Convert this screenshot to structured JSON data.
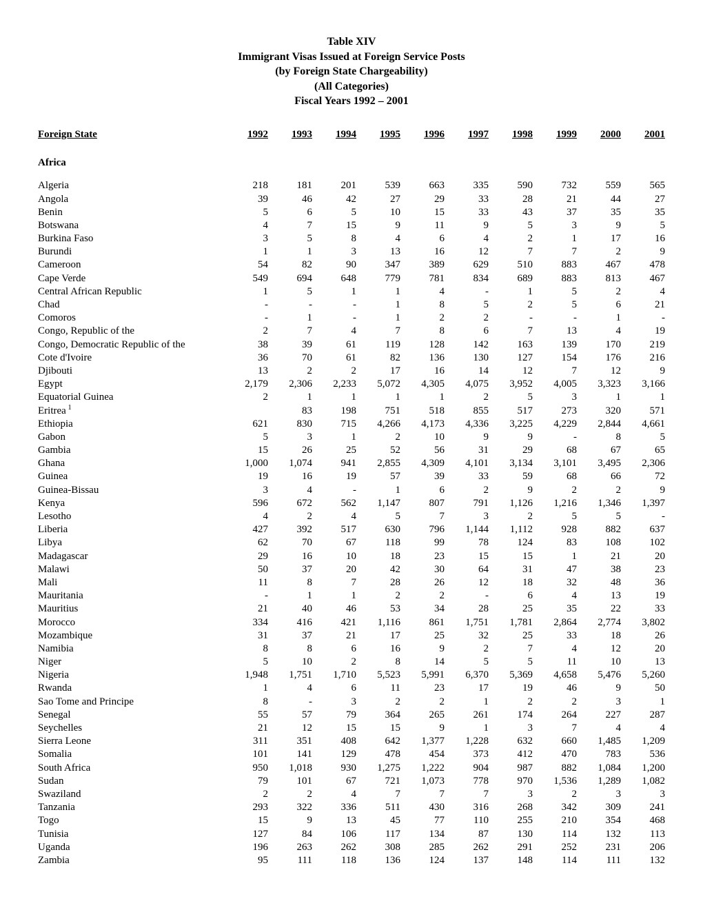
{
  "title_lines": [
    "Table XIV",
    "Immigrant Visas Issued at Foreign Service Posts",
    "(by Foreign State Chargeability)",
    "(All Categories)",
    "Fiscal Years 1992 – 2001"
  ],
  "header": {
    "state_label": "Foreign State",
    "years": [
      "1992",
      "1993",
      "1994",
      "1995",
      "1996",
      "1997",
      "1998",
      "1999",
      "2000",
      "2001"
    ]
  },
  "region": "Africa",
  "rows": [
    {
      "state": "Algeria",
      "v": [
        "218",
        "181",
        "201",
        "539",
        "663",
        "335",
        "590",
        "732",
        "559",
        "565"
      ]
    },
    {
      "state": "Angola",
      "v": [
        "39",
        "46",
        "42",
        "27",
        "29",
        "33",
        "28",
        "21",
        "44",
        "27"
      ]
    },
    {
      "state": "Benin",
      "v": [
        "5",
        "6",
        "5",
        "10",
        "15",
        "33",
        "43",
        "37",
        "35",
        "35"
      ]
    },
    {
      "state": "Botswana",
      "v": [
        "4",
        "7",
        "15",
        "9",
        "11",
        "9",
        "5",
        "3",
        "9",
        "5"
      ]
    },
    {
      "state": "Burkina Faso",
      "v": [
        "3",
        "5",
        "8",
        "4",
        "6",
        "4",
        "2",
        "1",
        "17",
        "16"
      ]
    },
    {
      "state": "Burundi",
      "v": [
        "1",
        "1",
        "3",
        "13",
        "16",
        "12",
        "7",
        "7",
        "2",
        "9"
      ]
    },
    {
      "state": "Cameroon",
      "v": [
        "54",
        "82",
        "90",
        "347",
        "389",
        "629",
        "510",
        "883",
        "467",
        "478"
      ]
    },
    {
      "state": "Cape Verde",
      "v": [
        "549",
        "694",
        "648",
        "779",
        "781",
        "834",
        "689",
        "883",
        "813",
        "467"
      ]
    },
    {
      "state": "Central African Republic",
      "v": [
        "1",
        "5",
        "1",
        "1",
        "4",
        "-",
        "1",
        "5",
        "2",
        "4"
      ]
    },
    {
      "state": "Chad",
      "v": [
        "-",
        "-",
        "-",
        "1",
        "8",
        "5",
        "2",
        "5",
        "6",
        "21"
      ]
    },
    {
      "state": "Comoros",
      "v": [
        "-",
        "1",
        "-",
        "1",
        "2",
        "2",
        "-",
        "-",
        "1",
        "-"
      ]
    },
    {
      "state": "Congo, Republic of the",
      "v": [
        "2",
        "7",
        "4",
        "7",
        "8",
        "6",
        "7",
        "13",
        "4",
        "19"
      ]
    },
    {
      "state": "Congo, Democratic Republic of the",
      "v": [
        "38",
        "39",
        "61",
        "119",
        "128",
        "142",
        "163",
        "139",
        "170",
        "219"
      ]
    },
    {
      "state": "Cote d'Ivoire",
      "v": [
        "36",
        "70",
        "61",
        "82",
        "136",
        "130",
        "127",
        "154",
        "176",
        "216"
      ]
    },
    {
      "state": "Djibouti",
      "v": [
        "13",
        "2",
        "2",
        "17",
        "16",
        "14",
        "12",
        "7",
        "12",
        "9"
      ]
    },
    {
      "state": "Egypt",
      "v": [
        "2,179",
        "2,306",
        "2,233",
        "5,072",
        "4,305",
        "4,075",
        "3,952",
        "4,005",
        "3,323",
        "3,166"
      ]
    },
    {
      "state": "Equatorial Guinea",
      "v": [
        "2",
        "1",
        "1",
        "1",
        "1",
        "2",
        "5",
        "3",
        "1",
        "1"
      ]
    },
    {
      "state": "Eritrea",
      "sup": "1",
      "v": [
        "",
        "83",
        "198",
        "751",
        "518",
        "855",
        "517",
        "273",
        "320",
        "571"
      ]
    },
    {
      "state": "Ethiopia",
      "v": [
        "621",
        "830",
        "715",
        "4,266",
        "4,173",
        "4,336",
        "3,225",
        "4,229",
        "2,844",
        "4,661"
      ]
    },
    {
      "state": "Gabon",
      "v": [
        "5",
        "3",
        "1",
        "2",
        "10",
        "9",
        "9",
        "-",
        "8",
        "5"
      ]
    },
    {
      "state": "Gambia",
      "v": [
        "15",
        "26",
        "25",
        "52",
        "56",
        "31",
        "29",
        "68",
        "67",
        "65"
      ]
    },
    {
      "state": "Ghana",
      "v": [
        "1,000",
        "1,074",
        "941",
        "2,855",
        "4,309",
        "4,101",
        "3,134",
        "3,101",
        "3,495",
        "2,306"
      ]
    },
    {
      "state": "Guinea",
      "v": [
        "19",
        "16",
        "19",
        "57",
        "39",
        "33",
        "59",
        "68",
        "66",
        "72"
      ]
    },
    {
      "state": "Guinea-Bissau",
      "v": [
        "3",
        "4",
        "-",
        "1",
        "6",
        "2",
        "9",
        "2",
        "2",
        "9"
      ]
    },
    {
      "state": "Kenya",
      "v": [
        "596",
        "672",
        "562",
        "1,147",
        "807",
        "791",
        "1,126",
        "1,216",
        "1,346",
        "1,397"
      ]
    },
    {
      "state": "Lesotho",
      "v": [
        "4",
        "2",
        "4",
        "5",
        "7",
        "3",
        "2",
        "5",
        "5",
        "-"
      ]
    },
    {
      "state": "Liberia",
      "v": [
        "427",
        "392",
        "517",
        "630",
        "796",
        "1,144",
        "1,112",
        "928",
        "882",
        "637"
      ]
    },
    {
      "state": "Libya",
      "v": [
        "62",
        "70",
        "67",
        "118",
        "99",
        "78",
        "124",
        "83",
        "108",
        "102"
      ]
    },
    {
      "state": "Madagascar",
      "v": [
        "29",
        "16",
        "10",
        "18",
        "23",
        "15",
        "15",
        "1",
        "21",
        "20"
      ]
    },
    {
      "state": "Malawi",
      "v": [
        "50",
        "37",
        "20",
        "42",
        "30",
        "64",
        "31",
        "47",
        "38",
        "23"
      ]
    },
    {
      "state": "Mali",
      "v": [
        "11",
        "8",
        "7",
        "28",
        "26",
        "12",
        "18",
        "32",
        "48",
        "36"
      ]
    },
    {
      "state": "Mauritania",
      "v": [
        "-",
        "1",
        "1",
        "2",
        "2",
        "-",
        "6",
        "4",
        "13",
        "19"
      ]
    },
    {
      "state": "Mauritius",
      "v": [
        "21",
        "40",
        "46",
        "53",
        "34",
        "28",
        "25",
        "35",
        "22",
        "33"
      ]
    },
    {
      "state": "Morocco",
      "v": [
        "334",
        "416",
        "421",
        "1,116",
        "861",
        "1,751",
        "1,781",
        "2,864",
        "2,774",
        "3,802"
      ]
    },
    {
      "state": "Mozambique",
      "v": [
        "31",
        "37",
        "21",
        "17",
        "25",
        "32",
        "25",
        "33",
        "18",
        "26"
      ]
    },
    {
      "state": "Namibia",
      "v": [
        "8",
        "8",
        "6",
        "16",
        "9",
        "2",
        "7",
        "4",
        "12",
        "20"
      ]
    },
    {
      "state": "Niger",
      "v": [
        "5",
        "10",
        "2",
        "8",
        "14",
        "5",
        "5",
        "11",
        "10",
        "13"
      ]
    },
    {
      "state": "Nigeria",
      "v": [
        "1,948",
        "1,751",
        "1,710",
        "5,523",
        "5,991",
        "6,370",
        "5,369",
        "4,658",
        "5,476",
        "5,260"
      ]
    },
    {
      "state": "Rwanda",
      "v": [
        "1",
        "4",
        "6",
        "11",
        "23",
        "17",
        "19",
        "46",
        "9",
        "50"
      ]
    },
    {
      "state": "Sao Tome and Principe",
      "v": [
        "8",
        "-",
        "3",
        "2",
        "2",
        "1",
        "2",
        "2",
        "3",
        "1"
      ]
    },
    {
      "state": "Senegal",
      "v": [
        "55",
        "57",
        "79",
        "364",
        "265",
        "261",
        "174",
        "264",
        "227",
        "287"
      ]
    },
    {
      "state": "Seychelles",
      "v": [
        "21",
        "12",
        "15",
        "15",
        "9",
        "1",
        "3",
        "7",
        "4",
        "4"
      ]
    },
    {
      "state": "Sierra Leone",
      "v": [
        "311",
        "351",
        "408",
        "642",
        "1,377",
        "1,228",
        "632",
        "660",
        "1,485",
        "1,209"
      ]
    },
    {
      "state": "Somalia",
      "v": [
        "101",
        "141",
        "129",
        "478",
        "454",
        "373",
        "412",
        "470",
        "783",
        "536"
      ]
    },
    {
      "state": "South Africa",
      "v": [
        "950",
        "1,018",
        "930",
        "1,275",
        "1,222",
        "904",
        "987",
        "882",
        "1,084",
        "1,200"
      ]
    },
    {
      "state": "Sudan",
      "v": [
        "79",
        "101",
        "67",
        "721",
        "1,073",
        "778",
        "970",
        "1,536",
        "1,289",
        "1,082"
      ]
    },
    {
      "state": "Swaziland",
      "v": [
        "2",
        "2",
        "4",
        "7",
        "7",
        "7",
        "3",
        "2",
        "3",
        "3"
      ]
    },
    {
      "state": "Tanzania",
      "v": [
        "293",
        "322",
        "336",
        "511",
        "430",
        "316",
        "268",
        "342",
        "309",
        "241"
      ]
    },
    {
      "state": "Togo",
      "v": [
        "15",
        "9",
        "13",
        "45",
        "77",
        "110",
        "255",
        "210",
        "354",
        "468"
      ]
    },
    {
      "state": "Tunisia",
      "v": [
        "127",
        "84",
        "106",
        "117",
        "134",
        "87",
        "130",
        "114",
        "132",
        "113"
      ]
    },
    {
      "state": "Uganda",
      "v": [
        "196",
        "263",
        "262",
        "308",
        "285",
        "262",
        "291",
        "252",
        "231",
        "206"
      ]
    },
    {
      "state": "Zambia",
      "v": [
        "95",
        "111",
        "118",
        "136",
        "124",
        "137",
        "148",
        "114",
        "111",
        "132"
      ]
    }
  ]
}
